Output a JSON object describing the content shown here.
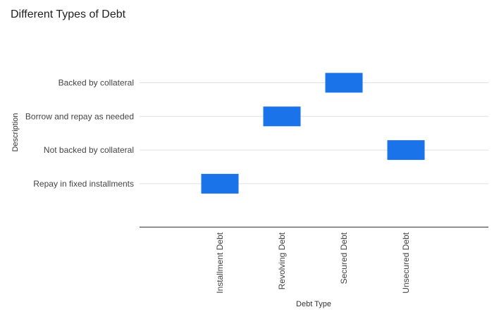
{
  "chart_data": {
    "type": "scatter",
    "title": "Different Types of Debt",
    "xlabel": "Debt Type",
    "ylabel": "Description",
    "x_categories": [
      "Installment Debt",
      "Revolving Debt",
      "Secured Debt",
      "Unsecured Debt"
    ],
    "y_categories": [
      "Backed by collateral",
      "Borrow and repay as needed",
      "Not backed by collateral",
      "Repay in fixed installments"
    ],
    "points": [
      {
        "x": "Installment Debt",
        "y": "Repay in fixed installments"
      },
      {
        "x": "Revolving Debt",
        "y": "Borrow and repay as needed"
      },
      {
        "x": "Secured Debt",
        "y": "Backed by collateral"
      },
      {
        "x": "Unsecured Debt",
        "y": "Not backed by collateral"
      }
    ],
    "marker": "square",
    "color": "#1a73e8",
    "gridlines_color": "#e0e0e0",
    "axis_color": "#333333",
    "grid": true,
    "legend": "none"
  }
}
